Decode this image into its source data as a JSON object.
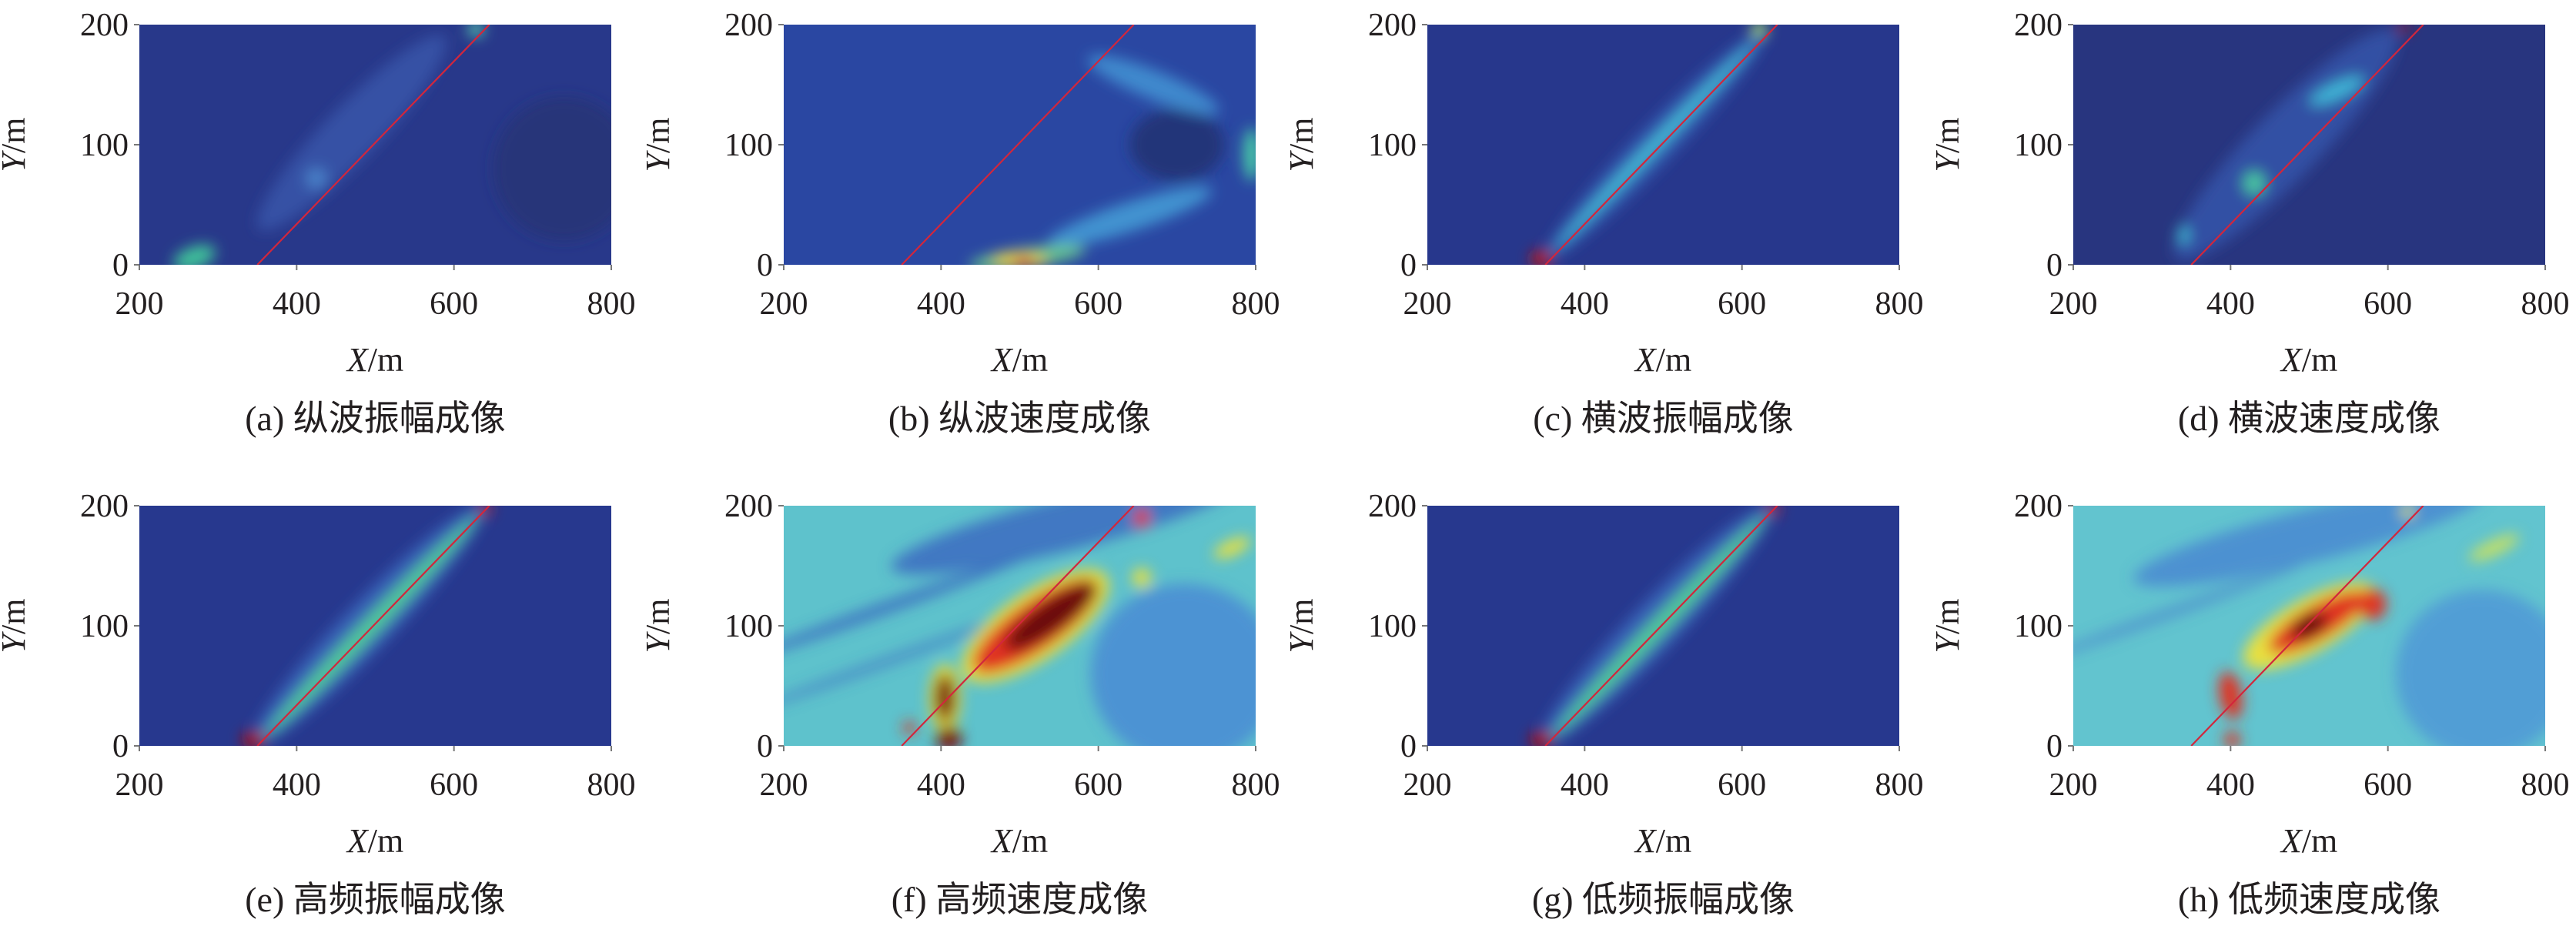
{
  "chart_data": [
    {
      "id": "a",
      "type": "heatmap",
      "caption": "(a) 纵波振幅成像",
      "xlabel_var": "X",
      "ylabel_var": "Y",
      "unit": "/m",
      "xlim": [
        200,
        800
      ],
      "ylim": [
        0,
        200
      ],
      "xticks": [
        "200",
        "400",
        "600",
        "800"
      ],
      "yticks": [
        "0",
        "100",
        "200"
      ],
      "reference_line": {
        "from": [
          350,
          0
        ],
        "to": [
          645,
          200
        ],
        "color": "#d2263c"
      },
      "background": "#28388a",
      "features": [
        {
          "x": 470,
          "y": 110,
          "rx": 170,
          "ry": 22,
          "color": "#3a5cb0",
          "opacity": 0.7,
          "rot": "line"
        },
        {
          "x": 270,
          "y": 6,
          "rx": 28,
          "ry": 9,
          "color": "#3fc39a",
          "opacity": 1,
          "rot": -20
        },
        {
          "x": 628,
          "y": 196,
          "rx": 10,
          "ry": 6,
          "color": "#5ad6b0",
          "opacity": 1,
          "rot": 0
        },
        {
          "x": 425,
          "y": 72,
          "rx": 14,
          "ry": 9,
          "color": "#4a86cc",
          "opacity": 0.9,
          "rot": 0
        },
        {
          "x": 740,
          "y": 80,
          "rx": 90,
          "ry": 60,
          "color": "#23306e",
          "opacity": 0.6,
          "rot": 0
        }
      ]
    },
    {
      "id": "b",
      "type": "heatmap",
      "caption": "(b) 纵波速度成像",
      "xlabel_var": "X",
      "ylabel_var": "Y",
      "unit": "/m",
      "xlim": [
        200,
        800
      ],
      "ylim": [
        0,
        200
      ],
      "xticks": [
        "200",
        "400",
        "600",
        "800"
      ],
      "yticks": [
        "0",
        "100",
        "200"
      ],
      "reference_line": {
        "from": [
          350,
          0
        ],
        "to": [
          645,
          200
        ],
        "color": "#d2263c"
      },
      "background": "#2a47a2",
      "features": [
        {
          "x": 700,
          "y": 100,
          "rx": 60,
          "ry": 30,
          "color": "#21306e",
          "opacity": 0.8,
          "rot": 0
        },
        {
          "x": 640,
          "y": 40,
          "rx": 110,
          "ry": 12,
          "color": "#47a6dc",
          "opacity": 0.8,
          "rot": -18
        },
        {
          "x": 670,
          "y": 150,
          "rx": 90,
          "ry": 12,
          "color": "#4598d8",
          "opacity": 0.8,
          "rot": 22
        },
        {
          "x": 510,
          "y": 6,
          "rx": 75,
          "ry": 8,
          "color": "#6ed28a",
          "opacity": 0.9,
          "rot": -8
        },
        {
          "x": 500,
          "y": 4,
          "rx": 35,
          "ry": 6,
          "color": "#f0d030",
          "opacity": 1,
          "rot": 0
        },
        {
          "x": 505,
          "y": 3,
          "rx": 12,
          "ry": 4,
          "color": "#e03020",
          "opacity": 1,
          "rot": 0
        },
        {
          "x": 795,
          "y": 92,
          "rx": 10,
          "ry": 22,
          "color": "#48d0a8",
          "opacity": 1,
          "rot": 0
        }
      ]
    },
    {
      "id": "c",
      "type": "heatmap",
      "caption": "(c) 横波振幅成像",
      "xlabel_var": "X",
      "ylabel_var": "Y",
      "unit": "/m",
      "xlim": [
        200,
        800
      ],
      "ylim": [
        0,
        200
      ],
      "xticks": [
        "200",
        "400",
        "600",
        "800"
      ],
      "yticks": [
        "0",
        "100",
        "200"
      ],
      "reference_line": {
        "from": [
          350,
          0
        ],
        "to": [
          645,
          200
        ],
        "color": "#d2263c"
      },
      "background": "#27378c",
      "features": [
        {
          "x": 490,
          "y": 100,
          "rx": 200,
          "ry": 16,
          "color": "#3460b8",
          "opacity": 0.8,
          "rot": "line"
        },
        {
          "x": 490,
          "y": 100,
          "rx": 185,
          "ry": 5,
          "color": "#46c0d8",
          "opacity": 1,
          "rot": "line"
        },
        {
          "x": 345,
          "y": 5,
          "rx": 14,
          "ry": 7,
          "color": "#b81818",
          "opacity": 1,
          "rot": 0
        },
        {
          "x": 622,
          "y": 196,
          "rx": 10,
          "ry": 6,
          "color": "#a6e070",
          "opacity": 1,
          "rot": 0
        }
      ]
    },
    {
      "id": "d",
      "type": "heatmap",
      "caption": "(d) 横波速度成像",
      "xlabel_var": "X",
      "ylabel_var": "Y",
      "unit": "/m",
      "xlim": [
        200,
        800
      ],
      "ylim": [
        0,
        200
      ],
      "xticks": [
        "200",
        "400",
        "600",
        "800"
      ],
      "yticks": [
        "0",
        "100",
        "200"
      ],
      "reference_line": {
        "from": [
          350,
          0
        ],
        "to": [
          645,
          200
        ],
        "color": "#d2263c"
      },
      "background": "#28357f",
      "features": [
        {
          "x": 470,
          "y": 100,
          "rx": 200,
          "ry": 28,
          "color": "#3558b0",
          "opacity": 0.75,
          "rot": "line"
        },
        {
          "x": 430,
          "y": 68,
          "rx": 14,
          "ry": 10,
          "color": "#48c8a0",
          "opacity": 1,
          "rot": 0
        },
        {
          "x": 340,
          "y": 25,
          "rx": 7,
          "ry": 8,
          "color": "#40c0d8",
          "opacity": 1,
          "rot": 0
        },
        {
          "x": 535,
          "y": 145,
          "rx": 38,
          "ry": 7,
          "color": "#40b8d8",
          "opacity": 1,
          "rot": -25
        },
        {
          "x": 620,
          "y": 197,
          "rx": 8,
          "ry": 4,
          "color": "#a01818",
          "opacity": 1,
          "rot": 0
        }
      ]
    },
    {
      "id": "e",
      "type": "heatmap",
      "caption": "(e) 高频振幅成像",
      "xlabel_var": "X",
      "ylabel_var": "Y",
      "unit": "/m",
      "xlim": [
        200,
        800
      ],
      "ylim": [
        0,
        200
      ],
      "xticks": [
        "200",
        "400",
        "600",
        "800"
      ],
      "yticks": [
        "0",
        "100",
        "200"
      ],
      "reference_line": {
        "from": [
          350,
          0
        ],
        "to": [
          645,
          200
        ],
        "color": "#d2263c"
      },
      "background": "#27388e",
      "features": [
        {
          "x": 490,
          "y": 100,
          "rx": 210,
          "ry": 20,
          "color": "#3b6cc0",
          "opacity": 0.8,
          "rot": "line"
        },
        {
          "x": 495,
          "y": 100,
          "rx": 195,
          "ry": 8,
          "color": "#52c89a",
          "opacity": 1,
          "rot": "line"
        },
        {
          "x": 345,
          "y": 5,
          "rx": 15,
          "ry": 7,
          "color": "#a81010",
          "opacity": 1,
          "rot": 0
        },
        {
          "x": 640,
          "y": 197,
          "rx": 8,
          "ry": 5,
          "color": "#c02020",
          "opacity": 1,
          "rot": 0
        }
      ]
    },
    {
      "id": "f",
      "type": "heatmap",
      "caption": "(f) 高频速度成像",
      "xlabel_var": "X",
      "ylabel_var": "Y",
      "unit": "/m",
      "xlim": [
        200,
        800
      ],
      "ylim": [
        0,
        200
      ],
      "xticks": [
        "200",
        "400",
        "600",
        "800"
      ],
      "yticks": [
        "0",
        "100",
        "200"
      ],
      "reference_line": {
        "from": [
          350,
          0
        ],
        "to": [
          645,
          200
        ],
        "color": "#d2263c"
      },
      "background": "#5ec2cc",
      "features": [
        {
          "x": 560,
          "y": 185,
          "rx": 230,
          "ry": 22,
          "color": "#3e74c2",
          "opacity": 0.95,
          "rot": -14
        },
        {
          "x": 710,
          "y": 60,
          "rx": 120,
          "ry": 75,
          "color": "#4a8ed4",
          "opacity": 0.9,
          "rot": 0
        },
        {
          "x": 330,
          "y": 115,
          "rx": 200,
          "ry": 5,
          "color": "#3b6fc0",
          "opacity": 0.9,
          "rot": -20
        },
        {
          "x": 330,
          "y": 70,
          "rx": 190,
          "ry": 4,
          "color": "#3e78c4",
          "opacity": 0.7,
          "rot": -20
        },
        {
          "x": 520,
          "y": 100,
          "rx": 110,
          "ry": 28,
          "color": "#e8e040",
          "opacity": 1,
          "rot": -35
        },
        {
          "x": 520,
          "y": 100,
          "rx": 95,
          "ry": 20,
          "color": "#e03020",
          "opacity": 1,
          "rot": -35
        },
        {
          "x": 540,
          "y": 108,
          "rx": 70,
          "ry": 13,
          "color": "#6a0a0a",
          "opacity": 1,
          "rot": -35
        },
        {
          "x": 405,
          "y": 40,
          "rx": 20,
          "ry": 28,
          "color": "#e8e040",
          "opacity": 1,
          "rot": 0
        },
        {
          "x": 405,
          "y": 40,
          "rx": 13,
          "ry": 20,
          "color": "#7a0a0a",
          "opacity": 1,
          "rot": 0
        },
        {
          "x": 410,
          "y": 6,
          "rx": 16,
          "ry": 10,
          "color": "#7a0a0a",
          "opacity": 1,
          "rot": 0
        },
        {
          "x": 360,
          "y": 15,
          "rx": 8,
          "ry": 5,
          "color": "#e03020",
          "opacity": 1,
          "rot": 0
        },
        {
          "x": 655,
          "y": 190,
          "rx": 10,
          "ry": 8,
          "color": "#e03020",
          "opacity": 1,
          "rot": 0
        },
        {
          "x": 655,
          "y": 140,
          "rx": 12,
          "ry": 8,
          "color": "#e8e040",
          "opacity": 1,
          "rot": 0
        },
        {
          "x": 770,
          "y": 165,
          "rx": 25,
          "ry": 6,
          "color": "#e8e040",
          "opacity": 1,
          "rot": -25
        }
      ]
    },
    {
      "id": "g",
      "type": "heatmap",
      "caption": "(g) 低频振幅成像",
      "xlabel_var": "X",
      "ylabel_var": "Y",
      "unit": "/m",
      "xlim": [
        200,
        800
      ],
      "ylim": [
        0,
        200
      ],
      "xticks": [
        "200",
        "400",
        "600",
        "800"
      ],
      "yticks": [
        "0",
        "100",
        "200"
      ],
      "reference_line": {
        "from": [
          350,
          0
        ],
        "to": [
          645,
          200
        ],
        "color": "#d2263c"
      },
      "background": "#27388e",
      "features": [
        {
          "x": 490,
          "y": 100,
          "rx": 210,
          "ry": 20,
          "color": "#3b6cc0",
          "opacity": 0.8,
          "rot": "line"
        },
        {
          "x": 495,
          "y": 100,
          "rx": 195,
          "ry": 8,
          "color": "#52c89a",
          "opacity": 1,
          "rot": "line"
        },
        {
          "x": 345,
          "y": 5,
          "rx": 15,
          "ry": 7,
          "color": "#a81010",
          "opacity": 1,
          "rot": 0
        },
        {
          "x": 640,
          "y": 197,
          "rx": 8,
          "ry": 5,
          "color": "#c02020",
          "opacity": 1,
          "rot": 0
        }
      ]
    },
    {
      "id": "h",
      "type": "heatmap",
      "caption": "(h) 低频速度成像",
      "xlabel_var": "X",
      "ylabel_var": "Y",
      "unit": "/m",
      "xlim": [
        200,
        800
      ],
      "ylim": [
        0,
        200
      ],
      "xticks": [
        "200",
        "400",
        "600",
        "800"
      ],
      "yticks": [
        "0",
        "100",
        "200"
      ],
      "reference_line": {
        "from": [
          350,
          0
        ],
        "to": [
          645,
          200
        ],
        "color": "#d2263c"
      },
      "background": "#62c4cf",
      "features": [
        {
          "x": 500,
          "y": 175,
          "rx": 230,
          "ry": 22,
          "color": "#4a8cd0",
          "opacity": 0.9,
          "rot": -14
        },
        {
          "x": 720,
          "y": 60,
          "rx": 110,
          "ry": 70,
          "color": "#4f98d6",
          "opacity": 0.85,
          "rot": 0
        },
        {
          "x": 320,
          "y": 110,
          "rx": 180,
          "ry": 4,
          "color": "#4a88cc",
          "opacity": 0.8,
          "rot": -20
        },
        {
          "x": 500,
          "y": 100,
          "rx": 95,
          "ry": 22,
          "color": "#e8e040",
          "opacity": 1,
          "rot": -30
        },
        {
          "x": 510,
          "y": 103,
          "rx": 70,
          "ry": 14,
          "color": "#e03020",
          "opacity": 1,
          "rot": -30
        },
        {
          "x": 500,
          "y": 100,
          "rx": 25,
          "ry": 9,
          "color": "#6a0a0a",
          "opacity": 1,
          "rot": -30
        },
        {
          "x": 580,
          "y": 118,
          "rx": 18,
          "ry": 13,
          "color": "#e03020",
          "opacity": 1,
          "rot": 0
        },
        {
          "x": 400,
          "y": 42,
          "rx": 14,
          "ry": 20,
          "color": "#e03020",
          "opacity": 1,
          "rot": -10
        },
        {
          "x": 402,
          "y": 5,
          "rx": 10,
          "ry": 7,
          "color": "#e03020",
          "opacity": 1,
          "rot": 0
        },
        {
          "x": 735,
          "y": 165,
          "rx": 35,
          "ry": 6,
          "color": "#c8e060",
          "opacity": 1,
          "rot": -25
        },
        {
          "x": 625,
          "y": 195,
          "rx": 8,
          "ry": 5,
          "color": "#d8e050",
          "opacity": 1,
          "rot": 0
        }
      ]
    }
  ]
}
